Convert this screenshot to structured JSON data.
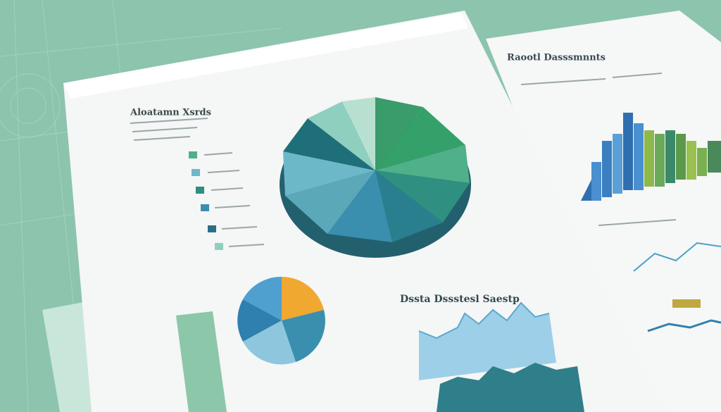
{
  "documents": {
    "main": {
      "heading": "Aloatamn Xsrds",
      "section": "Dssta Dssstesl Saestp"
    },
    "side": {
      "heading": "Raootl Dasssmnnts"
    }
  }
}
